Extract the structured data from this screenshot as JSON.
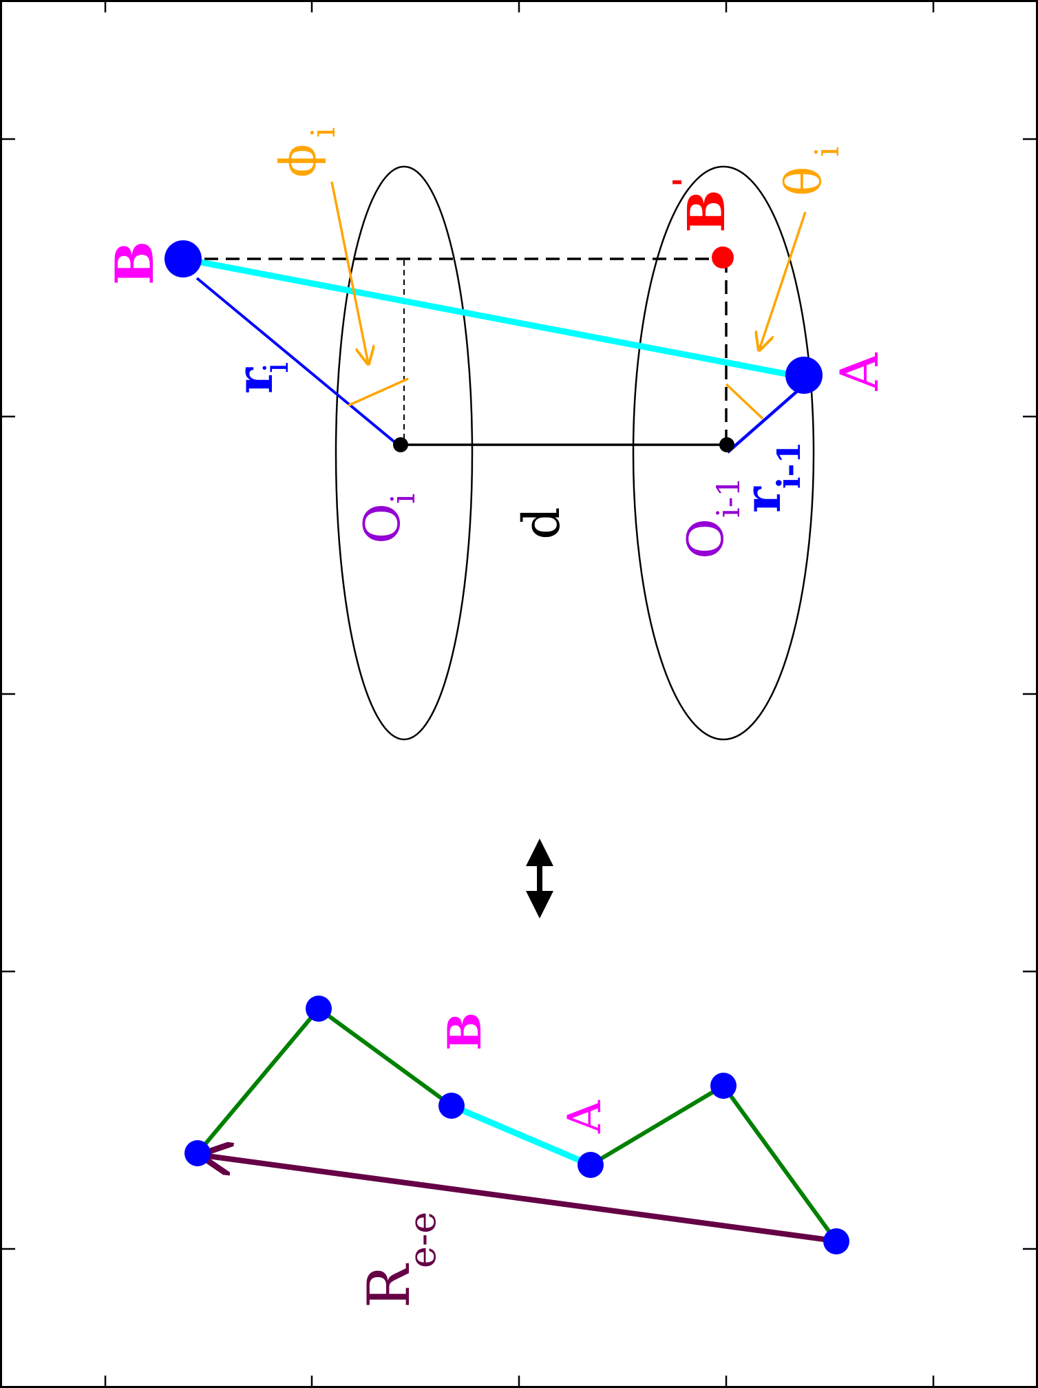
{
  "colors": {
    "black": "#000000",
    "blue": "#0000ff",
    "magenta": "#ff00ff",
    "cyan": "#00ffff",
    "orange": "#ffa500",
    "purple": "#9400d3",
    "red": "#ff0000",
    "green": "#008000",
    "dark_maroon": "#650045"
  },
  "labels": {
    "B": "B",
    "A": "A",
    "r": "r",
    "r_sub_i": "i",
    "r_sub_i_minus_1": "i-1",
    "O": "O",
    "O_sub_i": "i",
    "O_sub_i_minus_1": "i-1",
    "d": "d",
    "phi": "ϕ",
    "phi_sub": "i",
    "theta": "θ",
    "theta_sub": "i",
    "B_prime": "B",
    "B_prime_mark": "'",
    "chain_B": "B",
    "chain_A": "A",
    "R": "R",
    "R_sub": "e-e"
  }
}
